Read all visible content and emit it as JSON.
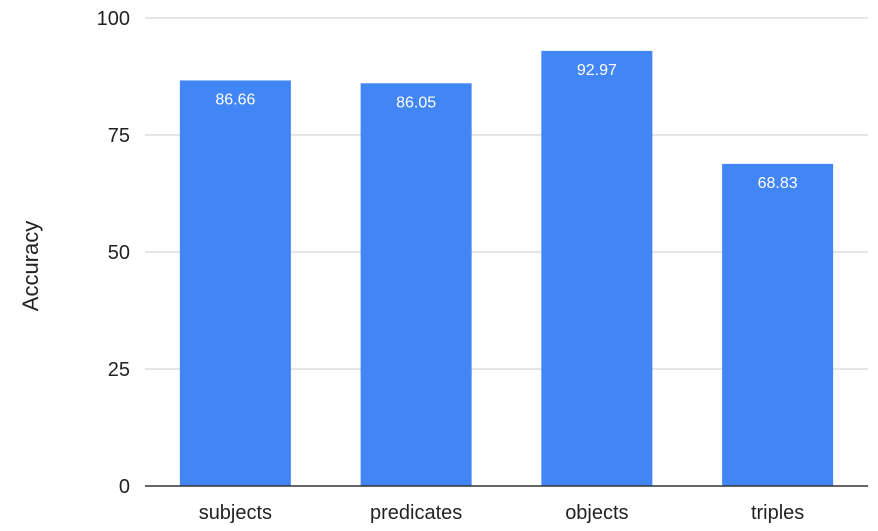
{
  "chart_data": {
    "type": "bar",
    "title": "",
    "xlabel": "",
    "ylabel": "Accuracy",
    "categories": [
      "subjects",
      "predicates",
      "objects",
      "triples"
    ],
    "values": [
      86.66,
      86.05,
      92.97,
      68.83
    ],
    "value_labels": [
      "86.66",
      "86.05",
      "92.97",
      "68.83"
    ],
    "ylim": [
      0,
      100
    ],
    "yticks": [
      0,
      25,
      50,
      75,
      100
    ],
    "grid": true,
    "legend": "none",
    "bar_color": "#4285F4",
    "gridline_color": "#cccccc",
    "axis_color": "#333333"
  }
}
